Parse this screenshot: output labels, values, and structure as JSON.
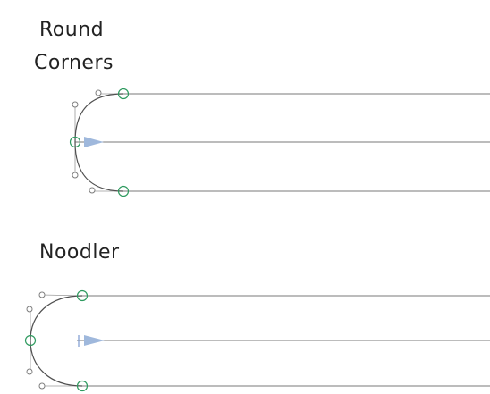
{
  "sections": {
    "round_corners": {
      "title_line1": "Round",
      "title_line2": "Corners"
    },
    "noodler": {
      "title": "Noodler"
    }
  },
  "colors": {
    "line": "#7a7a7a",
    "curve": "#505050",
    "handle": "#8a8a8a",
    "node": "#2e9a5f",
    "arrow": "#9fb8dc"
  }
}
